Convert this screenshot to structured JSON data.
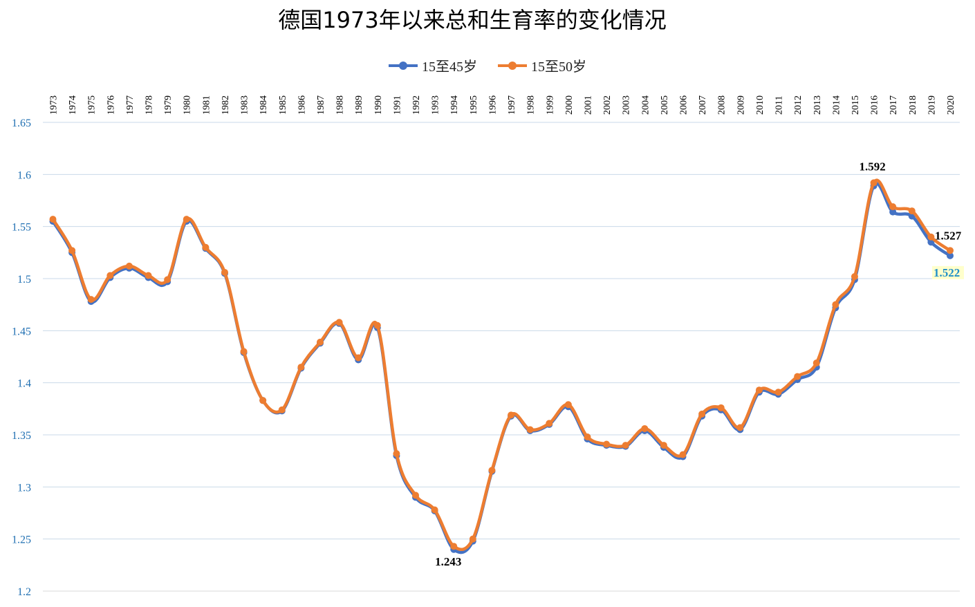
{
  "chart_data": {
    "type": "line",
    "title": "德国1973年以来总和生育率的变化情况",
    "xlabel": "",
    "ylabel": "",
    "ylim": [
      1.2,
      1.65
    ],
    "yticks": [
      "1.2",
      "1.25",
      "1.3",
      "1.35",
      "1.4",
      "1.45",
      "1.5",
      "1.55",
      "1.6",
      "1.65"
    ],
    "grid": true,
    "legend_position": "top-center",
    "x": [
      "1973",
      "1974",
      "1975",
      "1976",
      "1977",
      "1978",
      "1979",
      "1980",
      "1981",
      "1982",
      "1983",
      "1984",
      "1985",
      "1986",
      "1987",
      "1988",
      "1989",
      "1990",
      "1991",
      "1992",
      "1993",
      "1994",
      "1995",
      "1996",
      "1997",
      "1998",
      "1999",
      "2000",
      "2001",
      "2002",
      "2003",
      "2004",
      "2005",
      "2006",
      "2007",
      "2008",
      "2009",
      "2010",
      "2011",
      "2012",
      "2013",
      "2014",
      "2015",
      "2016",
      "2017",
      "2018",
      "2019",
      "2020"
    ],
    "series": [
      {
        "name": "15至45岁",
        "color": "#4472C4",
        "values": [
          1.555,
          1.525,
          1.478,
          1.501,
          1.51,
          1.501,
          1.497,
          1.555,
          1.529,
          1.505,
          1.429,
          1.383,
          1.373,
          1.414,
          1.438,
          1.457,
          1.422,
          1.453,
          1.33,
          1.29,
          1.277,
          1.24,
          1.248,
          1.315,
          1.368,
          1.354,
          1.36,
          1.377,
          1.346,
          1.34,
          1.339,
          1.354,
          1.338,
          1.329,
          1.368,
          1.374,
          1.355,
          1.391,
          1.389,
          1.403,
          1.415,
          1.472,
          1.499,
          1.589,
          1.564,
          1.56,
          1.535,
          1.522
        ]
      },
      {
        "name": "15至50岁",
        "color": "#ED7D31",
        "values": [
          1.557,
          1.527,
          1.48,
          1.503,
          1.512,
          1.503,
          1.499,
          1.557,
          1.53,
          1.506,
          1.43,
          1.383,
          1.374,
          1.415,
          1.439,
          1.458,
          1.424,
          1.455,
          1.332,
          1.292,
          1.278,
          1.243,
          1.25,
          1.316,
          1.369,
          1.355,
          1.361,
          1.379,
          1.348,
          1.341,
          1.34,
          1.356,
          1.34,
          1.331,
          1.37,
          1.376,
          1.357,
          1.393,
          1.391,
          1.406,
          1.419,
          1.475,
          1.502,
          1.592,
          1.569,
          1.565,
          1.54,
          1.527
        ]
      }
    ],
    "annotations": [
      {
        "label": "1.592",
        "year": "2016",
        "series": 1,
        "style": "bold"
      },
      {
        "label": "1.243",
        "year": "1994",
        "series": 1,
        "style": "bold"
      },
      {
        "label": "1.527",
        "year": "2020",
        "series": 1,
        "style": "bold"
      },
      {
        "label": "1.522",
        "year": "2020",
        "series": 0,
        "style": "highlight"
      }
    ]
  }
}
